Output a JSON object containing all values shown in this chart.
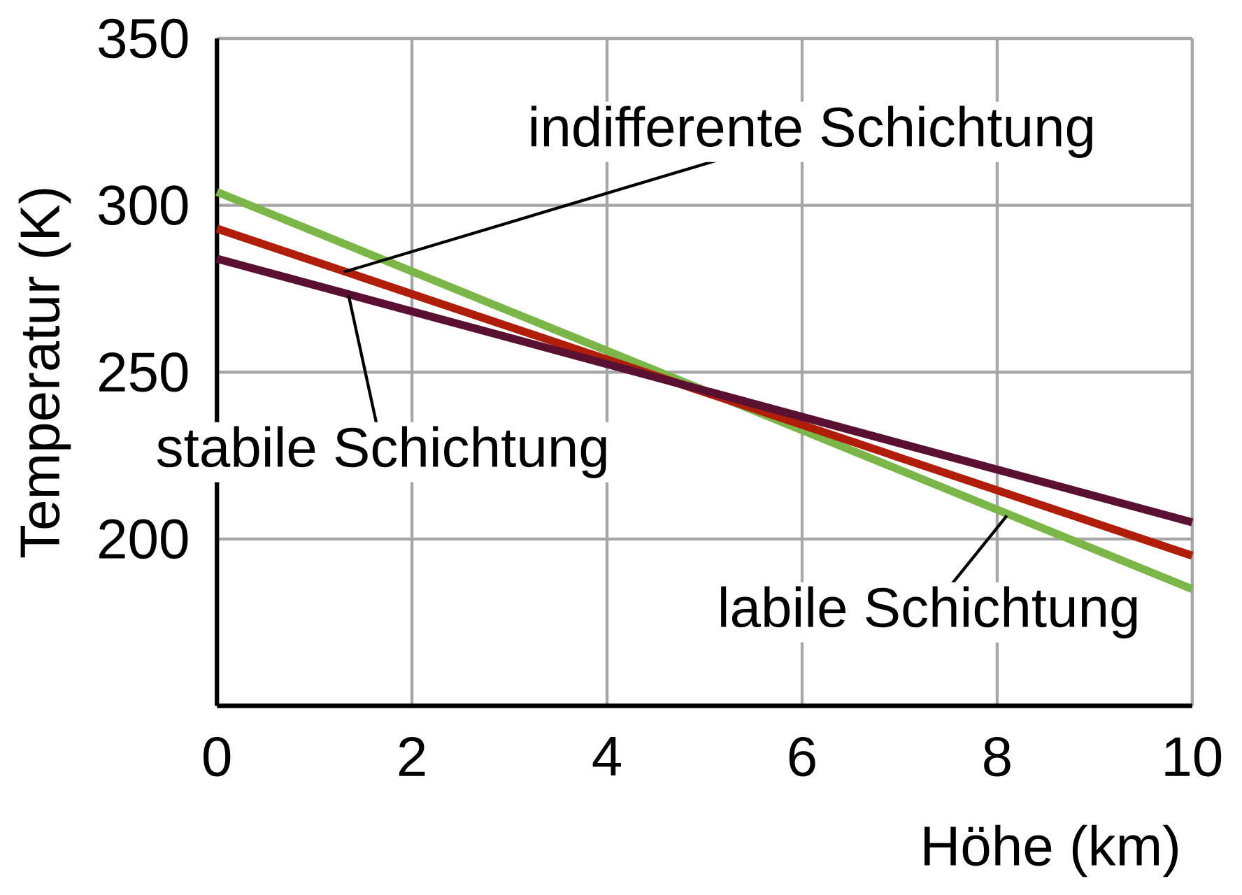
{
  "chart_data": {
    "type": "line",
    "xlabel": "Höhe (km)",
    "ylabel": "Temperatur (K)",
    "x": [
      0,
      10
    ],
    "series": [
      {
        "color": "#7ab648",
        "values": [
          304,
          185
        ]
      },
      {
        "color": "#b01e0a",
        "values": [
          293,
          195
        ]
      },
      {
        "color": "#5a1030",
        "values": [
          284,
          205
        ]
      }
    ],
    "xlim": [
      0,
      10
    ],
    "ylim": [
      150,
      350
    ],
    "xticks": [
      0,
      2,
      4,
      6,
      8,
      10
    ],
    "yticks": [
      200,
      250,
      300,
      350
    ],
    "grid": true,
    "marker": "none",
    "line_style": "solid",
    "annotations": [
      {
        "text": "indifferente Schichtung",
        "x": 1.3,
        "y": 280
      },
      {
        "text": "stabile Schichtung",
        "x": 1.35,
        "y": 273
      },
      {
        "text": "labile Schichtung",
        "x": 8.1,
        "y": 207
      }
    ]
  }
}
